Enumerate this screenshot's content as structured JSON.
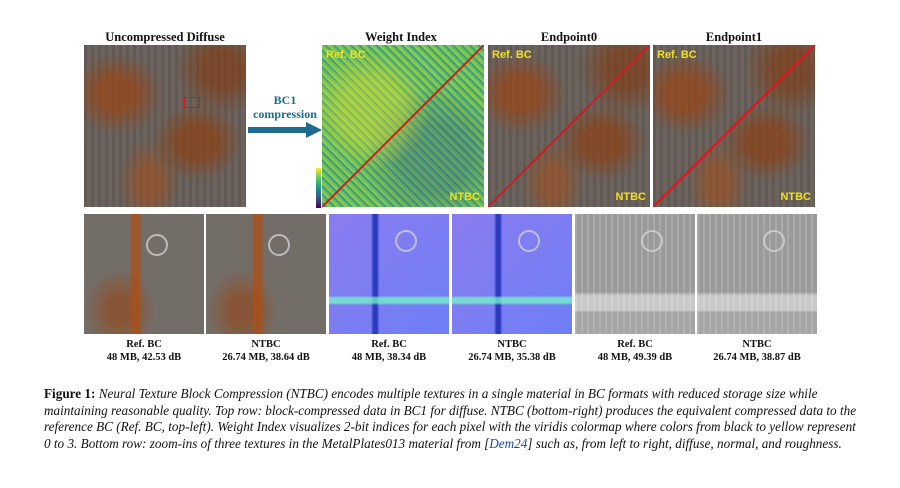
{
  "top_row": {
    "titles": [
      "Uncompressed Diffuse",
      "Weight Index",
      "Endpoint0",
      "Endpoint1"
    ],
    "arrow_label": "BC1\ncompression",
    "panel_labels": {
      "ref": "Ref. BC",
      "ntbc": "NTBC"
    }
  },
  "bottom_row": {
    "captions": [
      {
        "name": "Ref. BC",
        "stats": "48 MB, 42.53 dB"
      },
      {
        "name": "NTBC",
        "stats": "26.74 MB, 38.64 dB"
      },
      {
        "name": "Ref. BC",
        "stats": "48 MB, 38.34 dB"
      },
      {
        "name": "NTBC",
        "stats": "26.74 MB, 35.38 dB"
      },
      {
        "name": "Ref. BC",
        "stats": "48 MB, 49.39 dB"
      },
      {
        "name": "NTBC",
        "stats": "26.74 MB, 38.87 dB"
      }
    ]
  },
  "figure": {
    "label": "Figure 1:",
    "text_part1": " Neural Texture Block Compression (NTBC) encodes multiple textures in a single material in BC formats with reduced storage size while maintaining reasonable quality. Top row: block-compressed data in BC1 for diffuse. NTBC (bottom-right) produces the equivalent compressed data to the reference BC (Ref. BC, top-left). Weight Index visualizes 2-bit indices for each pixel with the viridis colormap where colors from black to yellow represent 0 to 3. Bottom row: zoom-ins of three textures in the MetalPlates013 material from [",
    "citation": "Dem24",
    "text_part2": "] such as, from left to right, diffuse, normal, and roughness."
  },
  "colors": {
    "arrow": "#1d6b8f",
    "diagonal": "#e0141e",
    "label_yellow": "#f0e020",
    "citation": "#1a4aa8"
  }
}
